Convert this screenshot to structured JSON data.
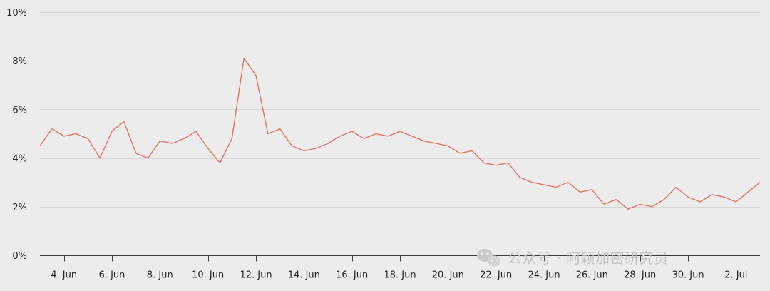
{
  "colors": {
    "background": "#ececec",
    "gridline": "#d6d6d6",
    "axis": "#3d3d3d",
    "series": "#e8705a",
    "text": "#222222"
  },
  "watermark": {
    "text": "公众号 · 阿颖加密研究员",
    "icon": "wechat-icon"
  },
  "chart_data": {
    "type": "line",
    "title": "",
    "xlabel": "",
    "ylabel": "",
    "x_range": [
      "2023-06-03",
      "2023-07-03"
    ],
    "ylim": [
      0,
      10
    ],
    "y_ticks": [
      0,
      2,
      4,
      6,
      8,
      10
    ],
    "y_tick_labels": [
      "0%",
      "2%",
      "4%",
      "6%",
      "8%",
      "10%"
    ],
    "x_ticks": [
      "2023-06-04",
      "2023-06-06",
      "2023-06-08",
      "2023-06-10",
      "2023-06-12",
      "2023-06-14",
      "2023-06-16",
      "2023-06-18",
      "2023-06-20",
      "2023-06-22",
      "2023-06-24",
      "2023-06-26",
      "2023-06-28",
      "2023-06-30",
      "2023-07-02"
    ],
    "x_tick_labels": [
      "4. Jun",
      "6. Jun",
      "8. Jun",
      "10. Jun",
      "12. Jun",
      "14. Jun",
      "16. Jun",
      "18. Jun",
      "20. Jun",
      "22. Jun",
      "24. Jun",
      "26. Jun",
      "28. Jun",
      "30. Jun",
      "2. Jul"
    ],
    "grid": true,
    "legend": "none",
    "series": [
      {
        "color": "#e8705a",
        "x": [
          "2023-06-03",
          "2023-06-03T12:00",
          "2023-06-04",
          "2023-06-04T12:00",
          "2023-06-05",
          "2023-06-05T12:00",
          "2023-06-06",
          "2023-06-06T12:00",
          "2023-06-07",
          "2023-06-07T12:00",
          "2023-06-08",
          "2023-06-08T12:00",
          "2023-06-09",
          "2023-06-09T12:00",
          "2023-06-10",
          "2023-06-10T12:00",
          "2023-06-11",
          "2023-06-11T12:00",
          "2023-06-12",
          "2023-06-12T12:00",
          "2023-06-13",
          "2023-06-13T12:00",
          "2023-06-14",
          "2023-06-14T12:00",
          "2023-06-15",
          "2023-06-15T12:00",
          "2023-06-16",
          "2023-06-16T12:00",
          "2023-06-17",
          "2023-06-17T12:00",
          "2023-06-18",
          "2023-06-18T12:00",
          "2023-06-19",
          "2023-06-19T12:00",
          "2023-06-20",
          "2023-06-20T12:00",
          "2023-06-21",
          "2023-06-21T12:00",
          "2023-06-22",
          "2023-06-22T12:00",
          "2023-06-23",
          "2023-06-23T12:00",
          "2023-06-24",
          "2023-06-24T12:00",
          "2023-06-25",
          "2023-06-25T12:00",
          "2023-06-26",
          "2023-06-26T12:00",
          "2023-06-27",
          "2023-06-27T12:00",
          "2023-06-28",
          "2023-06-28T12:00",
          "2023-06-29",
          "2023-06-29T12:00",
          "2023-06-30",
          "2023-06-30T12:00",
          "2023-07-01",
          "2023-07-01T12:00",
          "2023-07-02",
          "2023-07-02T12:00",
          "2023-07-03"
        ],
        "values": [
          4.5,
          5.2,
          4.9,
          5.0,
          4.8,
          4.0,
          5.1,
          5.5,
          4.2,
          4.0,
          4.7,
          4.6,
          4.8,
          5.1,
          4.4,
          3.8,
          4.8,
          8.1,
          7.4,
          5.0,
          5.2,
          4.5,
          4.3,
          4.4,
          4.6,
          4.9,
          5.1,
          4.8,
          5.0,
          4.9,
          5.1,
          4.9,
          4.7,
          4.6,
          4.5,
          4.2,
          4.3,
          3.8,
          3.7,
          3.8,
          3.2,
          3.0,
          2.9,
          2.8,
          3.0,
          2.6,
          2.7,
          2.1,
          2.3,
          1.9,
          2.1,
          2.0,
          2.3,
          2.8,
          2.4,
          2.2,
          2.5,
          2.4,
          2.2,
          2.6,
          3.0
        ]
      }
    ]
  }
}
